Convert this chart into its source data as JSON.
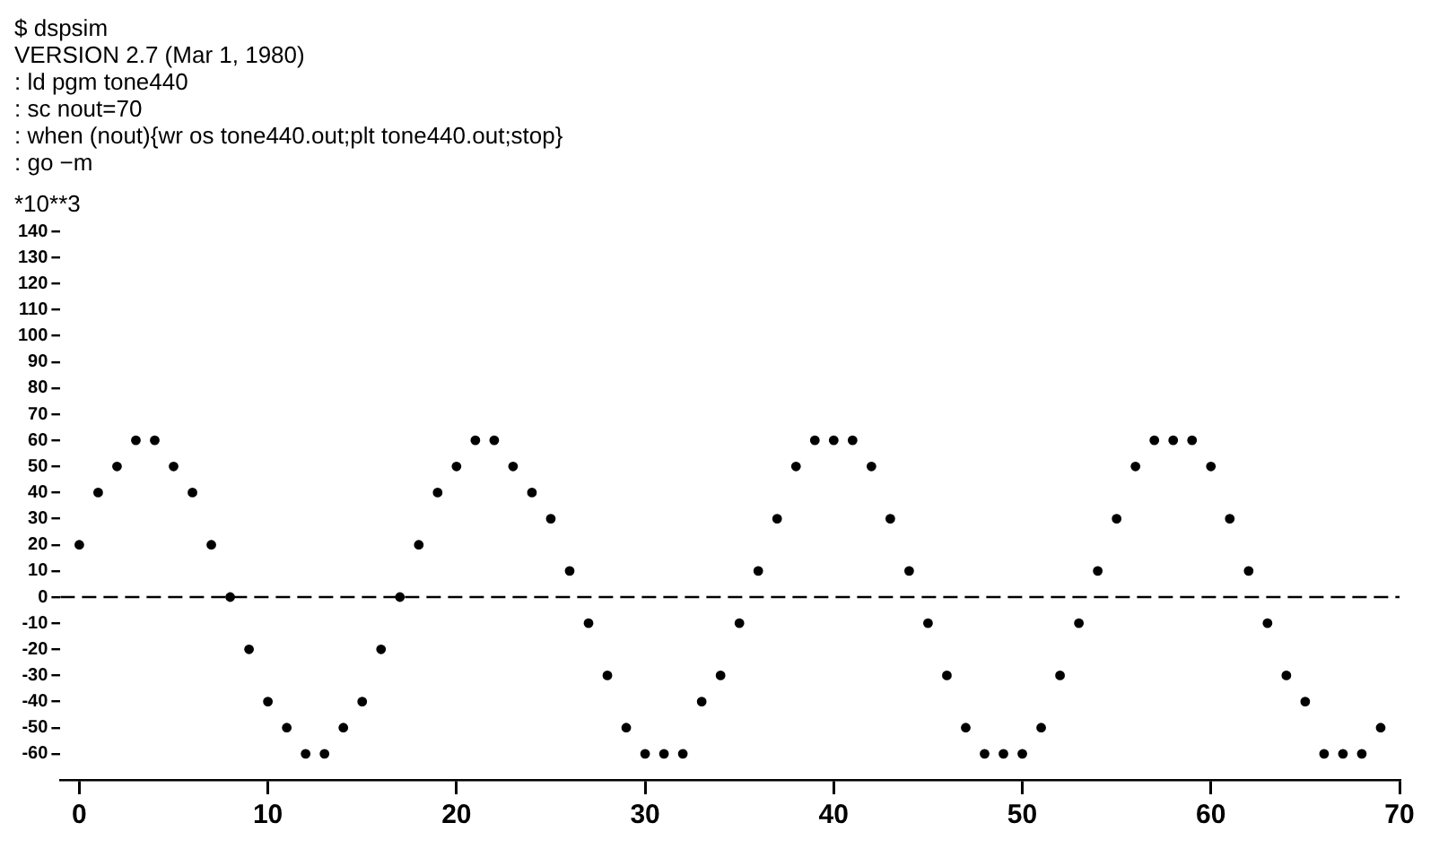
{
  "chart_data": {
    "type": "scatter",
    "annotations": [
      "$ dspsim",
      "VERSION 2.7 (Mar 1, 1980)",
      ": ld pgm tone440",
      ": sc nout=70",
      ": when (nout){wr os tone440.out;plt tone440.out;stop}",
      ": go −m"
    ],
    "ylabel": "*10**3",
    "x": [
      0,
      1,
      2,
      3,
      4,
      5,
      6,
      7,
      8,
      9,
      10,
      11,
      12,
      13,
      14,
      15,
      16,
      17,
      18,
      19,
      20,
      21,
      22,
      23,
      24,
      25,
      26,
      27,
      28,
      29,
      30,
      31,
      32,
      33,
      34,
      35,
      36,
      37,
      38,
      39,
      40,
      41,
      42,
      43,
      44,
      45,
      46,
      47,
      48,
      49,
      50,
      51,
      52,
      53,
      54,
      55,
      56,
      57,
      58,
      59,
      60,
      61,
      62,
      63,
      64,
      65,
      66,
      67,
      68,
      69
    ],
    "series": [
      {
        "color": "#000000",
        "values": [
          20,
          40,
          50,
          60,
          60,
          50,
          40,
          20,
          0,
          -20,
          -40,
          -50,
          -60,
          -60,
          -50,
          -40,
          -20,
          0,
          20,
          40,
          50,
          60,
          60,
          50,
          40,
          30,
          10,
          -10,
          -30,
          -50,
          -60,
          -60,
          -60,
          -40,
          -30,
          -10,
          10,
          30,
          50,
          60,
          60,
          60,
          50,
          30,
          10,
          -10,
          -30,
          -50,
          -60,
          -60,
          -60,
          -50,
          -30,
          -10,
          10,
          30,
          50,
          60,
          60,
          60,
          50,
          30,
          10,
          -10,
          -30,
          -40,
          -60,
          -60,
          -60,
          -50
        ]
      }
    ],
    "xlim": [
      -1,
      70
    ],
    "xticks": [
      0,
      10,
      20,
      30,
      40,
      50,
      60,
      70
    ],
    "ylim": [
      -70,
      140
    ],
    "yticks": [
      -60,
      -50,
      -40,
      -30,
      -20,
      -10,
      0,
      10,
      20,
      30,
      40,
      50,
      60,
      70,
      80,
      90,
      100,
      110,
      120,
      130,
      140
    ],
    "ref_lines": [
      {
        "axis": "y",
        "value": 0,
        "color": "#000000",
        "line_style": "dashed"
      }
    ],
    "marker": "circle",
    "grid": false,
    "legend": false
  }
}
